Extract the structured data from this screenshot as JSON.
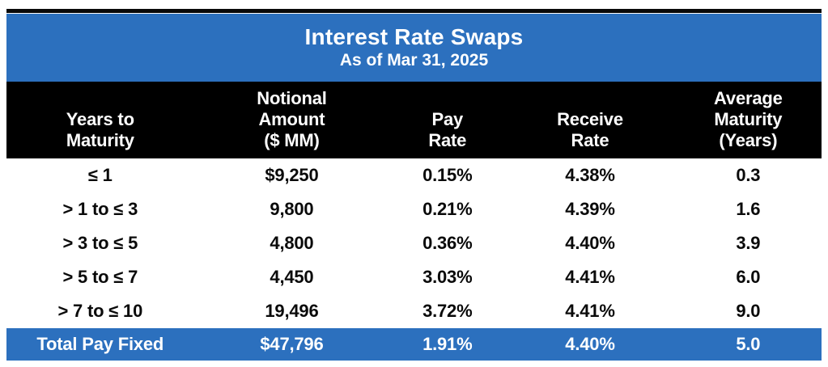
{
  "header": {
    "title": "Interest Rate Swaps",
    "subtitle": "As of Mar 31, 2025"
  },
  "table": {
    "columns": [
      "Years to\nMaturity",
      "Notional\nAmount\n($ MM)",
      "Pay\nRate",
      "Receive\nRate",
      "Average\nMaturity\n(Years)"
    ],
    "rows": [
      [
        "≤ 1",
        "$9,250",
        "0.15%",
        "4.38%",
        "0.3"
      ],
      [
        "> 1 to ≤ 3",
        "9,800",
        "0.21%",
        "4.39%",
        "1.6"
      ],
      [
        "> 3 to ≤ 5",
        "4,800",
        "0.36%",
        "4.40%",
        "3.9"
      ],
      [
        "> 5 to ≤ 7",
        "4,450",
        "3.03%",
        "4.41%",
        "6.0"
      ],
      [
        "> 7 to ≤ 10",
        "19,496",
        "3.72%",
        "4.41%",
        "9.0"
      ]
    ],
    "total_row": [
      "Total Pay Fixed",
      "$47,796",
      "1.91%",
      "4.40%",
      "5.0"
    ]
  },
  "colors": {
    "accent_blue": "#2c70be",
    "header_black": "#000000",
    "text_on_dark": "#ffffff",
    "text_on_light": "#0a0a0a"
  },
  "chart_data": {
    "type": "table",
    "title": "Interest Rate Swaps",
    "subtitle": "As of Mar 31, 2025",
    "columns": [
      "Years to Maturity",
      "Notional Amount ($ MM)",
      "Pay Rate",
      "Receive Rate",
      "Average Maturity (Years)"
    ],
    "rows": [
      {
        "years_to_maturity": "≤ 1",
        "notional_amount_mm": 9250,
        "pay_rate_pct": 0.15,
        "receive_rate_pct": 4.38,
        "average_maturity_years": 0.3
      },
      {
        "years_to_maturity": "> 1 to ≤ 3",
        "notional_amount_mm": 9800,
        "pay_rate_pct": 0.21,
        "receive_rate_pct": 4.39,
        "average_maturity_years": 1.6
      },
      {
        "years_to_maturity": "> 3 to ≤ 5",
        "notional_amount_mm": 4800,
        "pay_rate_pct": 0.36,
        "receive_rate_pct": 4.4,
        "average_maturity_years": 3.9
      },
      {
        "years_to_maturity": "> 5 to ≤ 7",
        "notional_amount_mm": 4450,
        "pay_rate_pct": 3.03,
        "receive_rate_pct": 4.41,
        "average_maturity_years": 6.0
      },
      {
        "years_to_maturity": "> 7 to ≤ 10",
        "notional_amount_mm": 19496,
        "pay_rate_pct": 3.72,
        "receive_rate_pct": 4.41,
        "average_maturity_years": 9.0
      }
    ],
    "total": {
      "label": "Total Pay Fixed",
      "notional_amount_mm": 47796,
      "pay_rate_pct": 1.91,
      "receive_rate_pct": 4.4,
      "average_maturity_years": 5.0
    }
  }
}
